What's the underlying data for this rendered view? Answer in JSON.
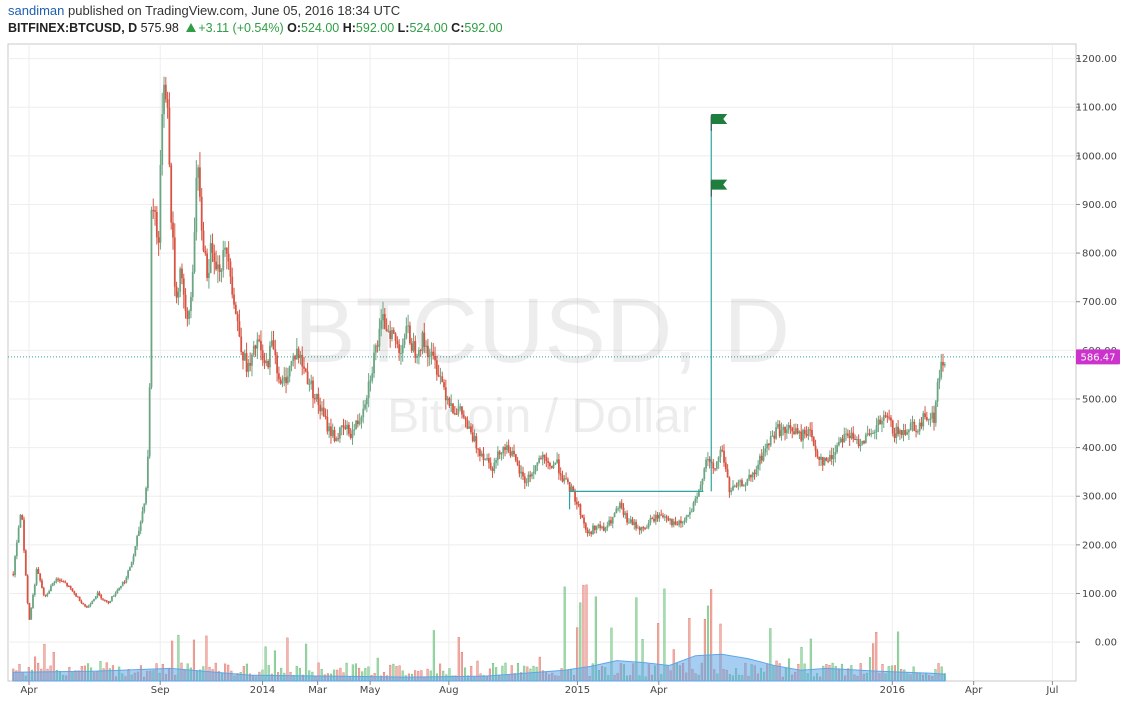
{
  "header": {
    "author": "sandiman",
    "published_text": "published on TradingView.com, June 05, 2016 18:34 UTC",
    "symbol": "BITFINEX:BTCUSD, D",
    "last": "575.98",
    "change": "+3.11 (+0.54%)",
    "o_label": "O:",
    "o_value": "524.00",
    "h_label": "H:",
    "h_value": "592.00",
    "l_label": "L:",
    "l_value": "524.00",
    "c_label": "C:",
    "c_value": "592.00"
  },
  "watermark": {
    "line1": "BTCUSD, D",
    "line2": "Bitcoin / Dollar"
  },
  "price_tag": "586.47",
  "colors": {
    "up": "#6ba583",
    "down": "#d75442",
    "volume_up": "#a9dcb2",
    "volume_down": "#f2b6b0",
    "volume_ma": "#5da6e8",
    "trendline": "#2ba5a0",
    "price_tag": "#cc33cc",
    "flag": "#1e7e3e"
  },
  "chart_data": {
    "type": "candlestick",
    "y_axis": {
      "ticks": [
        "1200.00",
        "1100.00",
        "1000.00",
        "900.00",
        "800.00",
        "700.00",
        "600.00",
        "500.00",
        "400.00",
        "300.00",
        "200.00",
        "100.00",
        "0.00"
      ],
      "range": [
        -80,
        1230
      ]
    },
    "x_axis": {
      "ticks": [
        {
          "label": "Apr",
          "t": 0.6
        },
        {
          "label": "Sep",
          "t": 5.6
        },
        {
          "label": "2014",
          "t": 9.5
        },
        {
          "label": "Mar",
          "t": 11.6
        },
        {
          "label": "May",
          "t": 13.6
        },
        {
          "label": "Aug",
          "t": 16.6
        },
        {
          "label": "2015",
          "t": 21.5
        },
        {
          "label": "Apr",
          "t": 24.6
        },
        {
          "label": "2016",
          "t": 33.5
        },
        {
          "label": "Apr",
          "t": 36.6
        },
        {
          "label": "Jul",
          "t": 39.6
        }
      ],
      "range": [
        -0.2,
        40.5
      ]
    },
    "price_path": [
      [
        0,
        140
      ],
      [
        0.3,
        280
      ],
      [
        0.6,
        40
      ],
      [
        0.9,
        150
      ],
      [
        1.2,
        90
      ],
      [
        1.6,
        130
      ],
      [
        2.0,
        120
      ],
      [
        2.4,
        95
      ],
      [
        2.8,
        70
      ],
      [
        3.2,
        100
      ],
      [
        3.6,
        80
      ],
      [
        4.0,
        110
      ],
      [
        4.3,
        130
      ],
      [
        4.6,
        180
      ],
      [
        4.9,
        260
      ],
      [
        5.1,
        330
      ],
      [
        5.2,
        520
      ],
      [
        5.25,
        900
      ],
      [
        5.4,
        880
      ],
      [
        5.55,
        820
      ],
      [
        5.7,
        1160
      ],
      [
        5.85,
        1140
      ],
      [
        6.0,
        900
      ],
      [
        6.2,
        700
      ],
      [
        6.4,
        780
      ],
      [
        6.6,
        640
      ],
      [
        6.8,
        720
      ],
      [
        7.0,
        980
      ],
      [
        7.2,
        840
      ],
      [
        7.4,
        760
      ],
      [
        7.6,
        820
      ],
      [
        7.8,
        770
      ],
      [
        8.0,
        790
      ],
      [
        8.2,
        810
      ],
      [
        8.4,
        700
      ],
      [
        8.6,
        640
      ],
      [
        8.8,
        580
      ],
      [
        9.0,
        560
      ],
      [
        9.3,
        620
      ],
      [
        9.6,
        560
      ],
      [
        9.9,
        620
      ],
      [
        10.2,
        520
      ],
      [
        10.5,
        560
      ],
      [
        10.8,
        600
      ],
      [
        11.1,
        560
      ],
      [
        11.4,
        520
      ],
      [
        11.7,
        480
      ],
      [
        12.0,
        440
      ],
      [
        12.3,
        420
      ],
      [
        12.6,
        440
      ],
      [
        12.9,
        430
      ],
      [
        13.2,
        460
      ],
      [
        13.5,
        520
      ],
      [
        13.8,
        600
      ],
      [
        14.1,
        660
      ],
      [
        14.4,
        640
      ],
      [
        14.7,
        600
      ],
      [
        15.0,
        640
      ],
      [
        15.3,
        600
      ],
      [
        15.6,
        620
      ],
      [
        15.9,
        590
      ],
      [
        16.2,
        560
      ],
      [
        16.5,
        510
      ],
      [
        16.8,
        480
      ],
      [
        17.1,
        470
      ],
      [
        17.4,
        430
      ],
      [
        17.7,
        400
      ],
      [
        18.0,
        380
      ],
      [
        18.3,
        360
      ],
      [
        18.6,
        400
      ],
      [
        18.9,
        400
      ],
      [
        19.2,
        360
      ],
      [
        19.5,
        330
      ],
      [
        19.8,
        350
      ],
      [
        20.1,
        380
      ],
      [
        20.4,
        360
      ],
      [
        20.7,
        370
      ],
      [
        21.0,
        330
      ],
      [
        21.3,
        310
      ],
      [
        21.6,
        270
      ],
      [
        21.9,
        220
      ],
      [
        22.2,
        240
      ],
      [
        22.5,
        230
      ],
      [
        22.8,
        250
      ],
      [
        23.1,
        280
      ],
      [
        23.4,
        250
      ],
      [
        23.7,
        240
      ],
      [
        24.0,
        230
      ],
      [
        24.3,
        250
      ],
      [
        24.6,
        260
      ],
      [
        24.9,
        260
      ],
      [
        25.2,
        240
      ],
      [
        25.5,
        245
      ],
      [
        25.8,
        265
      ],
      [
        26.1,
        300
      ],
      [
        26.4,
        380
      ],
      [
        26.7,
        350
      ],
      [
        27.0,
        400
      ],
      [
        27.3,
        310
      ],
      [
        27.6,
        320
      ],
      [
        27.9,
        330
      ],
      [
        28.2,
        340
      ],
      [
        28.5,
        380
      ],
      [
        28.8,
        410
      ],
      [
        29.1,
        440
      ],
      [
        29.4,
        430
      ],
      [
        29.7,
        440
      ],
      [
        30.0,
        420
      ],
      [
        30.3,
        440
      ],
      [
        30.6,
        390
      ],
      [
        30.9,
        370
      ],
      [
        31.2,
        380
      ],
      [
        31.5,
        420
      ],
      [
        31.8,
        430
      ],
      [
        32.1,
        410
      ],
      [
        32.4,
        420
      ],
      [
        32.7,
        420
      ],
      [
        33.0,
        450
      ],
      [
        33.3,
        460
      ],
      [
        33.6,
        430
      ],
      [
        33.9,
        430
      ],
      [
        34.2,
        450
      ],
      [
        34.5,
        440
      ],
      [
        34.8,
        470
      ],
      [
        35.1,
        460
      ],
      [
        35.3,
        560
      ],
      [
        35.5,
        580
      ]
    ],
    "volume_ma": [
      [
        0,
        18
      ],
      [
        3,
        20
      ],
      [
        6,
        26
      ],
      [
        9,
        12
      ],
      [
        12,
        10
      ],
      [
        15,
        8
      ],
      [
        18,
        10
      ],
      [
        21,
        22
      ],
      [
        22,
        30
      ],
      [
        23,
        42
      ],
      [
        24,
        38
      ],
      [
        25,
        32
      ],
      [
        26,
        52
      ],
      [
        27,
        55
      ],
      [
        28,
        46
      ],
      [
        29,
        32
      ],
      [
        30,
        22
      ],
      [
        31,
        26
      ],
      [
        33,
        20
      ],
      [
        35,
        16
      ],
      [
        35.5,
        14
      ]
    ],
    "trendline": {
      "from": [
        21.2,
        310
      ],
      "to": [
        26.3,
        310
      ]
    },
    "vertical_line": {
      "x": 26.6,
      "from": 310,
      "to": 1080
    },
    "flags": [
      {
        "x": 26.6,
        "y": 1080
      },
      {
        "x": 26.6,
        "y": 945
      }
    ],
    "last_price": 586.47
  }
}
